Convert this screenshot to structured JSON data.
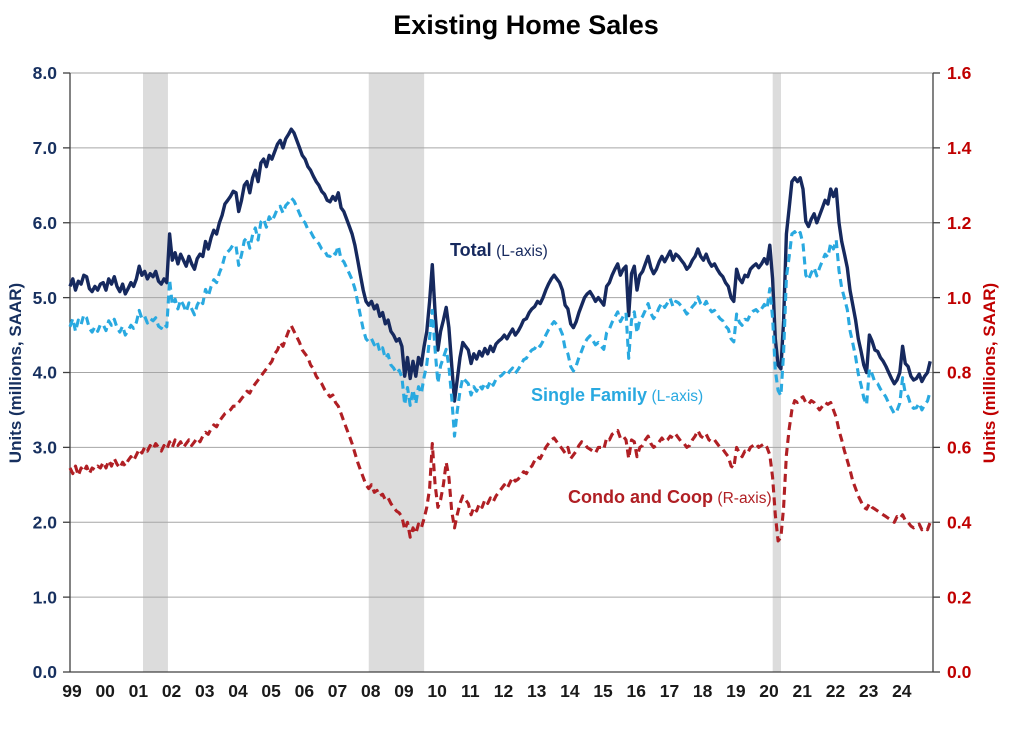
{
  "title": "Existing Home Sales",
  "left_axis": {
    "title": "Units (millions, SAAR)",
    "tick_labels": [
      "0.0",
      "1.0",
      "2.0",
      "3.0",
      "4.0",
      "5.0",
      "6.0",
      "7.0",
      "8.0"
    ]
  },
  "right_axis": {
    "title": "Units (millions, SAAR)",
    "tick_labels": [
      "0.0",
      "0.2",
      "0.4",
      "0.6",
      "0.8",
      "1.0",
      "1.2",
      "1.4",
      "1.6"
    ]
  },
  "x_axis": {
    "labels": [
      "99",
      "00",
      "01",
      "02",
      "03",
      "04",
      "05",
      "06",
      "07",
      "08",
      "09",
      "10",
      "11",
      "12",
      "13",
      "14",
      "15",
      "16",
      "17",
      "18",
      "19",
      "20",
      "21",
      "22",
      "23",
      "24"
    ]
  },
  "series_labels": {
    "total": {
      "name": "Total",
      "axis_note": "(L-axis)"
    },
    "single_family": {
      "name": "Single Family",
      "axis_note": "(L-axis)"
    },
    "condo": {
      "name": "Condo and Coop",
      "axis_note": "(R-axis)"
    }
  },
  "colors": {
    "total": "#16295E",
    "single_family": "#29A9E0",
    "condo": "#B01F24",
    "left_axis_text": "#17305F",
    "right_axis_text": "#C00000",
    "x_axis_text": "#1A1A1A",
    "recession_band": "#DCDCDC",
    "gridline": "#A6A6A6",
    "axis_line": "#404040"
  },
  "chart_data": {
    "type": "line",
    "title": "Existing Home Sales",
    "x_range": [
      1999,
      2025
    ],
    "x_tick_labels": [
      "99",
      "00",
      "01",
      "02",
      "03",
      "04",
      "05",
      "06",
      "07",
      "08",
      "09",
      "10",
      "11",
      "12",
      "13",
      "14",
      "15",
      "16",
      "17",
      "18",
      "19",
      "20",
      "21",
      "22",
      "23",
      "24"
    ],
    "grid": "horizontal",
    "legend_position": "on-chart-annotations",
    "left_axis": {
      "label": "Units (millions, SAAR)",
      "ylim": [
        0,
        8
      ],
      "tick_step": 1.0
    },
    "right_axis": {
      "label": "Units (millions, SAAR)",
      "ylim": [
        0,
        1.6
      ],
      "tick_step": 0.2
    },
    "recession_bands_years": [
      [
        2001.2,
        2001.95
      ],
      [
        2008.0,
        2009.67
      ],
      [
        2020.17,
        2020.42
      ]
    ],
    "x_start": 1999.0,
    "x_step": 0.0833333,
    "series": [
      {
        "name": "Total",
        "axis": "L",
        "line": "solid",
        "color_key": "total",
        "values": [
          5.15,
          5.25,
          5.1,
          5.22,
          5.18,
          5.3,
          5.28,
          5.12,
          5.08,
          5.15,
          5.1,
          5.18,
          5.2,
          5.1,
          5.25,
          5.18,
          5.28,
          5.15,
          5.08,
          5.18,
          5.05,
          5.12,
          5.2,
          5.15,
          5.25,
          5.42,
          5.3,
          5.35,
          5.25,
          5.32,
          5.28,
          5.35,
          5.22,
          5.18,
          5.25,
          5.2,
          5.85,
          5.5,
          5.6,
          5.45,
          5.58,
          5.5,
          5.42,
          5.55,
          5.45,
          5.38,
          5.52,
          5.58,
          5.55,
          5.75,
          5.65,
          5.8,
          5.9,
          5.85,
          6.0,
          6.1,
          6.25,
          6.3,
          6.35,
          6.42,
          6.4,
          6.15,
          6.3,
          6.5,
          6.55,
          6.4,
          6.6,
          6.7,
          6.55,
          6.8,
          6.85,
          6.75,
          6.9,
          6.85,
          6.95,
          7.05,
          7.1,
          7.0,
          7.12,
          7.18,
          7.25,
          7.2,
          7.1,
          7.0,
          6.9,
          6.85,
          6.75,
          6.7,
          6.62,
          6.55,
          6.5,
          6.42,
          6.38,
          6.3,
          6.28,
          6.35,
          6.3,
          6.4,
          6.2,
          6.15,
          6.05,
          5.95,
          5.85,
          5.7,
          5.5,
          5.3,
          5.1,
          4.95,
          4.9,
          4.95,
          4.85,
          4.9,
          4.75,
          4.8,
          4.65,
          4.7,
          4.55,
          4.5,
          4.42,
          4.45,
          4.35,
          3.95,
          4.2,
          3.92,
          4.15,
          3.95,
          4.2,
          4.1,
          4.35,
          4.55,
          4.95,
          5.44,
          4.8,
          4.3,
          4.55,
          4.7,
          4.87,
          4.6,
          4.1,
          3.62,
          3.9,
          4.2,
          4.4,
          4.35,
          4.3,
          4.12,
          4.25,
          4.18,
          4.28,
          4.22,
          4.32,
          4.25,
          4.35,
          4.28,
          4.38,
          4.42,
          4.45,
          4.5,
          4.45,
          4.52,
          4.58,
          4.5,
          4.55,
          4.62,
          4.7,
          4.72,
          4.8,
          4.85,
          4.88,
          4.95,
          4.92,
          5.0,
          5.1,
          5.18,
          5.25,
          5.3,
          5.25,
          5.2,
          5.1,
          4.9,
          4.85,
          4.65,
          4.6,
          4.68,
          4.8,
          4.9,
          5.0,
          5.05,
          5.08,
          5.02,
          4.95,
          5.0,
          4.95,
          4.9,
          5.15,
          5.2,
          5.3,
          5.38,
          5.45,
          5.3,
          5.38,
          5.42,
          4.76,
          5.32,
          5.42,
          5.1,
          5.3,
          5.35,
          5.45,
          5.55,
          5.4,
          5.32,
          5.38,
          5.48,
          5.55,
          5.48,
          5.55,
          5.62,
          5.5,
          5.58,
          5.55,
          5.5,
          5.45,
          5.38,
          5.42,
          5.5,
          5.55,
          5.65,
          5.55,
          5.5,
          5.58,
          5.48,
          5.42,
          5.45,
          5.38,
          5.32,
          5.28,
          5.2,
          5.15,
          5.0,
          4.95,
          5.38,
          5.25,
          5.2,
          5.3,
          5.28,
          5.38,
          5.42,
          5.45,
          5.4,
          5.45,
          5.52,
          5.45,
          5.7,
          5.25,
          4.45,
          4.1,
          4.05,
          4.7,
          5.85,
          6.2,
          6.55,
          6.6,
          6.55,
          6.6,
          6.45,
          6.02,
          5.95,
          6.05,
          6.12,
          6.0,
          6.1,
          6.2,
          6.3,
          6.25,
          6.45,
          6.35,
          6.45,
          6.0,
          5.75,
          5.58,
          5.4,
          5.1,
          4.9,
          4.7,
          4.45,
          4.28,
          4.1,
          4.0,
          4.5,
          4.42,
          4.3,
          4.28,
          4.2,
          4.15,
          4.08,
          4.0,
          3.92,
          3.85,
          3.9,
          4.0,
          4.35,
          4.12,
          4.08,
          3.95,
          3.9,
          3.92,
          3.98,
          3.88,
          3.95,
          4.0,
          4.15
        ]
      },
      {
        "name": "Single Family",
        "axis": "L",
        "line": "dashed",
        "color_key": "single_family",
        "values": [
          4.61,
          4.72,
          4.55,
          4.7,
          4.64,
          4.77,
          4.73,
          4.59,
          4.54,
          4.61,
          4.55,
          4.64,
          4.64,
          4.56,
          4.69,
          4.63,
          4.71,
          4.6,
          4.54,
          4.62,
          4.5,
          4.56,
          4.63,
          4.59,
          4.67,
          4.83,
          4.72,
          4.75,
          4.66,
          4.72,
          4.69,
          4.73,
          4.62,
          4.59,
          4.65,
          4.61,
          5.24,
          4.9,
          4.98,
          4.85,
          4.97,
          4.9,
          4.81,
          4.93,
          4.85,
          4.77,
          4.9,
          4.97,
          4.92,
          5.11,
          5.02,
          5.15,
          5.24,
          5.2,
          5.33,
          5.42,
          5.56,
          5.61,
          5.65,
          5.71,
          5.69,
          5.43,
          5.57,
          5.76,
          5.8,
          5.66,
          5.84,
          5.93,
          5.77,
          6.01,
          6.05,
          5.94,
          6.08,
          6.02,
          6.1,
          6.19,
          6.22,
          6.13,
          6.23,
          6.27,
          6.33,
          6.29,
          6.21,
          6.12,
          6.04,
          6.0,
          5.91,
          5.88,
          5.81,
          5.76,
          5.72,
          5.65,
          5.63,
          5.56,
          5.55,
          5.61,
          5.58,
          5.69,
          5.51,
          5.48,
          5.4,
          5.32,
          5.24,
          5.12,
          4.94,
          4.76,
          4.58,
          4.45,
          4.41,
          4.45,
          4.37,
          4.42,
          4.28,
          4.33,
          4.19,
          4.24,
          4.1,
          4.06,
          3.99,
          4.03,
          3.94,
          3.57,
          3.8,
          3.56,
          3.77,
          3.58,
          3.81,
          3.72,
          3.94,
          4.11,
          4.46,
          4.83,
          4.3,
          3.86,
          4.09,
          4.2,
          4.31,
          4.08,
          3.67,
          3.15,
          3.48,
          3.75,
          3.93,
          3.89,
          3.85,
          3.7,
          3.81,
          3.75,
          3.83,
          3.78,
          3.86,
          3.8,
          3.89,
          3.83,
          3.91,
          3.94,
          3.96,
          4.0,
          3.96,
          4.02,
          4.06,
          3.99,
          4.04,
          4.1,
          4.17,
          4.19,
          4.26,
          4.3,
          4.32,
          4.38,
          4.35,
          4.42,
          4.5,
          4.57,
          4.63,
          4.68,
          4.64,
          4.6,
          4.51,
          4.32,
          4.25,
          4.08,
          4.02,
          4.09,
          4.2,
          4.29,
          4.39,
          4.45,
          4.49,
          4.43,
          4.37,
          4.4,
          4.35,
          4.31,
          4.53,
          4.58,
          4.67,
          4.74,
          4.81,
          4.68,
          4.75,
          4.8,
          4.19,
          4.7,
          4.81,
          4.53,
          4.7,
          4.75,
          4.83,
          4.92,
          4.79,
          4.72,
          4.78,
          4.87,
          4.93,
          4.87,
          4.93,
          4.99,
          4.88,
          4.95,
          4.93,
          4.89,
          4.84,
          4.78,
          4.82,
          4.88,
          4.92,
          5.01,
          4.92,
          4.88,
          4.95,
          4.86,
          4.81,
          4.83,
          4.77,
          4.72,
          4.69,
          4.62,
          4.58,
          4.45,
          4.41,
          4.78,
          4.67,
          4.63,
          4.71,
          4.7,
          4.78,
          4.82,
          4.84,
          4.8,
          4.85,
          4.91,
          4.85,
          5.12,
          4.73,
          4.03,
          3.76,
          3.69,
          4.26,
          5.27,
          5.55,
          5.85,
          5.88,
          5.83,
          5.87,
          5.72,
          5.3,
          5.24,
          5.33,
          5.4,
          5.29,
          5.4,
          5.49,
          5.58,
          5.54,
          5.73,
          5.65,
          5.77,
          5.36,
          5.13,
          4.99,
          4.84,
          4.56,
          4.39,
          4.21,
          3.98,
          3.83,
          3.66,
          3.57,
          4.05,
          3.98,
          3.87,
          3.85,
          3.78,
          3.73,
          3.67,
          3.59,
          3.52,
          3.45,
          3.49,
          3.59,
          3.93,
          3.72,
          3.68,
          3.56,
          3.52,
          3.53,
          3.59,
          3.5,
          3.57,
          3.62,
          3.75
        ]
      },
      {
        "name": "Condo and Coop",
        "axis": "R",
        "line": "dashed",
        "color_key": "condo",
        "values": [
          0.545,
          0.53,
          0.55,
          0.525,
          0.545,
          0.535,
          0.55,
          0.53,
          0.545,
          0.54,
          0.55,
          0.545,
          0.56,
          0.545,
          0.565,
          0.55,
          0.57,
          0.555,
          0.545,
          0.56,
          0.55,
          0.565,
          0.575,
          0.565,
          0.58,
          0.595,
          0.585,
          0.6,
          0.59,
          0.605,
          0.595,
          0.61,
          0.6,
          0.59,
          0.605,
          0.595,
          0.615,
          0.6,
          0.62,
          0.605,
          0.615,
          0.6,
          0.61,
          0.62,
          0.605,
          0.615,
          0.625,
          0.615,
          0.63,
          0.64,
          0.635,
          0.65,
          0.66,
          0.655,
          0.67,
          0.68,
          0.69,
          0.695,
          0.7,
          0.71,
          0.71,
          0.72,
          0.73,
          0.74,
          0.75,
          0.745,
          0.76,
          0.77,
          0.78,
          0.79,
          0.8,
          0.81,
          0.82,
          0.83,
          0.85,
          0.86,
          0.88,
          0.87,
          0.89,
          0.91,
          0.925,
          0.91,
          0.895,
          0.88,
          0.86,
          0.85,
          0.84,
          0.82,
          0.81,
          0.79,
          0.78,
          0.77,
          0.755,
          0.745,
          0.735,
          0.74,
          0.72,
          0.71,
          0.69,
          0.67,
          0.65,
          0.63,
          0.61,
          0.585,
          0.56,
          0.54,
          0.52,
          0.5,
          0.49,
          0.5,
          0.48,
          0.485,
          0.47,
          0.475,
          0.46,
          0.465,
          0.45,
          0.44,
          0.43,
          0.425,
          0.415,
          0.38,
          0.4,
          0.36,
          0.385,
          0.37,
          0.395,
          0.385,
          0.41,
          0.44,
          0.49,
          0.61,
          0.5,
          0.44,
          0.46,
          0.5,
          0.56,
          0.52,
          0.43,
          0.385,
          0.42,
          0.45,
          0.47,
          0.46,
          0.45,
          0.42,
          0.44,
          0.43,
          0.45,
          0.44,
          0.46,
          0.45,
          0.465,
          0.455,
          0.47,
          0.48,
          0.49,
          0.5,
          0.49,
          0.505,
          0.52,
          0.51,
          0.515,
          0.525,
          0.535,
          0.53,
          0.545,
          0.55,
          0.565,
          0.575,
          0.57,
          0.585,
          0.6,
          0.61,
          0.62,
          0.625,
          0.615,
          0.605,
          0.595,
          0.585,
          0.6,
          0.57,
          0.58,
          0.59,
          0.605,
          0.615,
          0.61,
          0.6,
          0.595,
          0.59,
          0.585,
          0.6,
          0.6,
          0.595,
          0.625,
          0.62,
          0.635,
          0.64,
          0.645,
          0.625,
          0.63,
          0.62,
          0.57,
          0.62,
          0.615,
          0.575,
          0.6,
          0.605,
          0.62,
          0.63,
          0.61,
          0.6,
          0.605,
          0.615,
          0.625,
          0.615,
          0.62,
          0.63,
          0.625,
          0.635,
          0.625,
          0.615,
          0.61,
          0.6,
          0.605,
          0.62,
          0.63,
          0.645,
          0.63,
          0.625,
          0.635,
          0.62,
          0.615,
          0.62,
          0.61,
          0.6,
          0.595,
          0.585,
          0.575,
          0.55,
          0.545,
          0.6,
          0.585,
          0.575,
          0.59,
          0.585,
          0.6,
          0.605,
          0.61,
          0.6,
          0.605,
          0.61,
          0.6,
          0.58,
          0.52,
          0.42,
          0.35,
          0.36,
          0.44,
          0.58,
          0.65,
          0.7,
          0.725,
          0.72,
          0.73,
          0.735,
          0.72,
          0.715,
          0.725,
          0.72,
          0.71,
          0.7,
          0.71,
          0.72,
          0.715,
          0.72,
          0.7,
          0.68,
          0.645,
          0.62,
          0.59,
          0.565,
          0.54,
          0.51,
          0.49,
          0.47,
          0.455,
          0.44,
          0.435,
          0.45,
          0.44,
          0.435,
          0.43,
          0.425,
          0.42,
          0.415,
          0.41,
          0.405,
          0.4,
          0.415,
          0.41,
          0.42,
          0.405,
          0.4,
          0.39,
          0.385,
          0.39,
          0.395,
          0.38,
          0.385,
          0.38,
          0.4
        ]
      }
    ]
  }
}
